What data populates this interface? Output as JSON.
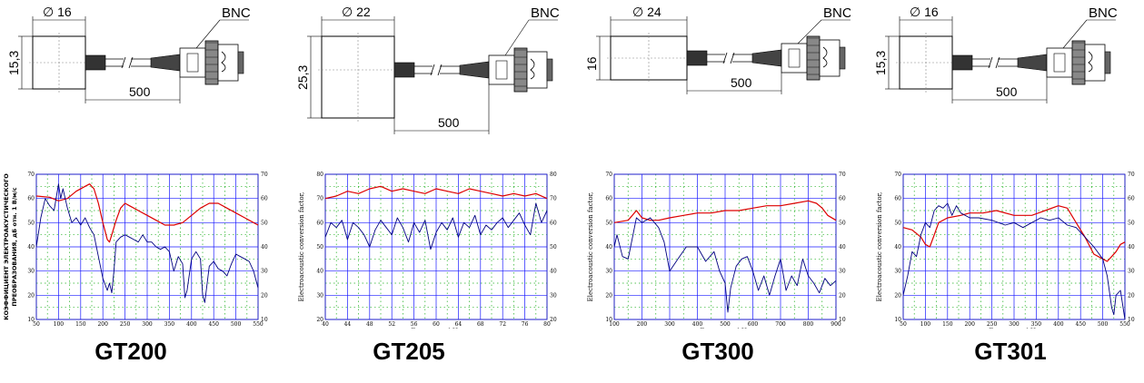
{
  "sensors": [
    {
      "model": "GT200",
      "drawing": {
        "diameter": "∅ 16",
        "height": "15,3",
        "cable_length": "500",
        "connector": "BNC",
        "body_w": 58,
        "body_h": 58
      },
      "chart_data": {
        "type": "line",
        "title": "",
        "xlabel": "ЧАСТОТА, кГц",
        "ylabel": "КОЭФФИЦИЕНТ ЭЛЕКТРОАКУСТИЧЕСКОГО ПРЕОБРАЗОВАНИЯ, дБ отн. 1 В/м/с",
        "xlim": [
          50,
          550
        ],
        "ylim": [
          10,
          70
        ],
        "xticks": [
          "50",
          "100",
          "150",
          "200",
          "250",
          "300",
          "350",
          "400",
          "450",
          "500",
          "550"
        ],
        "yticks": [
          "10",
          "20",
          "30",
          "40",
          "50",
          "60",
          "70"
        ],
        "grid": true,
        "series": [
          {
            "color": "#dd0000",
            "x": [
              50,
              80,
              100,
              120,
              140,
              160,
              170,
              180,
              190,
              200,
              210,
              215,
              220,
              230,
              240,
              250,
              260,
              280,
              300,
              320,
              340,
              360,
              380,
              400,
              420,
              440,
              460,
              480,
              500,
              520,
              540,
              550
            ],
            "y": [
              61,
              60.5,
              59,
              60,
              63,
              65,
              66,
              64,
              58,
              50,
              43,
              42,
              45,
              51,
              56,
              58,
              57,
              55,
              53,
              51,
              49,
              49,
              50,
              53,
              56,
              58,
              58,
              56,
              54,
              52,
              50,
              49
            ]
          },
          {
            "color": "#000080",
            "x": [
              50,
              60,
              70,
              80,
              90,
              100,
              105,
              110,
              120,
              130,
              140,
              150,
              160,
              170,
              180,
              190,
              200,
              210,
              215,
              220,
              225,
              230,
              240,
              250,
              260,
              270,
              280,
              290,
              300,
              310,
              320,
              330,
              340,
              350,
              360,
              370,
              380,
              385,
              390,
              400,
              410,
              420,
              425,
              430,
              440,
              450,
              460,
              470,
              480,
              490,
              500,
              510,
              520,
              530,
              540,
              550
            ],
            "y": [
              40,
              52,
              60,
              57,
              55,
              66,
              60,
              64,
              56,
              50,
              52,
              49,
              52,
              48,
              45,
              36,
              27,
              22,
              25,
              21,
              30,
              42,
              44,
              45,
              44,
              43,
              42,
              45,
              42,
              42,
              40,
              39,
              40,
              38,
              30,
              36,
              33,
              19,
              22,
              35,
              38,
              35,
              20,
              17,
              32,
              34,
              31,
              30,
              28,
              33,
              37,
              36,
              35,
              34,
              30,
              23
            ]
          }
        ]
      }
    },
    {
      "model": "GT205",
      "drawing": {
        "diameter": "∅ 22",
        "height": "25,3",
        "cable_length": "500",
        "connector": "BNC",
        "body_w": 80,
        "body_h": 90
      },
      "chart_data": {
        "type": "line",
        "title": "",
        "xlabel": "Frequency, kHz",
        "ylabel": "Electroacoustic conversion factor,",
        "xlim": [
          40,
          80
        ],
        "ylim": [
          20,
          80
        ],
        "xticks": [
          "40",
          "44",
          "48",
          "52",
          "56",
          "60",
          "64",
          "68",
          "72",
          "76",
          "80"
        ],
        "yticks": [
          "20",
          "30",
          "40",
          "50",
          "60",
          "70",
          "80"
        ],
        "grid": true,
        "series": [
          {
            "color": "#dd0000",
            "x": [
              40,
              42,
              44,
              46,
              48,
              50,
              52,
              54,
              56,
              58,
              60,
              62,
              64,
              66,
              68,
              70,
              72,
              74,
              76,
              78,
              80
            ],
            "y": [
              70,
              71,
              73,
              72,
              74,
              75,
              73,
              74,
              73,
              72,
              74,
              73,
              72,
              74,
              73,
              72,
              71,
              72,
              71,
              72,
              70
            ]
          },
          {
            "color": "#000080",
            "x": [
              40,
              41,
              42,
              43,
              44,
              45,
              46,
              47,
              48,
              49,
              50,
              51,
              52,
              53,
              54,
              55,
              56,
              57,
              58,
              59,
              60,
              61,
              62,
              63,
              64,
              65,
              66,
              67,
              68,
              69,
              70,
              71,
              72,
              73,
              74,
              75,
              76,
              77,
              78,
              79,
              80
            ],
            "y": [
              54,
              60,
              58,
              61,
              53,
              60,
              58,
              55,
              50,
              57,
              61,
              58,
              55,
              62,
              58,
              52,
              60,
              56,
              61,
              49,
              56,
              60,
              57,
              62,
              54,
              60,
              58,
              63,
              55,
              59,
              57,
              60,
              62,
              58,
              61,
              64,
              59,
              55,
              68,
              60,
              65
            ]
          }
        ]
      }
    },
    {
      "model": "GT300",
      "drawing": {
        "diameter": "∅ 24",
        "height": "16",
        "cable_length": "500",
        "connector": "BNC",
        "body_w": 84,
        "body_h": 48
      },
      "chart_data": {
        "type": "line",
        "title": "",
        "xlabel": "Frequency, kHz",
        "ylabel": "Electroacoustic conversion factor,",
        "xlim": [
          100,
          900
        ],
        "ylim": [
          10,
          70
        ],
        "xticks": [
          "100",
          "200",
          "300",
          "400",
          "500",
          "600",
          "700",
          "800",
          "900"
        ],
        "yticks": [
          "10",
          "20",
          "30",
          "40",
          "50",
          "60",
          "70"
        ],
        "grid": true,
        "series": [
          {
            "color": "#dd0000",
            "x": [
              100,
              150,
              180,
              200,
              230,
              260,
              300,
              350,
              400,
              450,
              500,
              550,
              600,
              650,
              700,
              750,
              800,
              830,
              850,
              870,
              900
            ],
            "y": [
              50,
              51,
              55,
              52,
              51,
              51,
              52,
              53,
              54,
              54,
              55,
              55,
              56,
              57,
              57,
              58,
              59,
              58,
              56,
              53,
              51
            ]
          },
          {
            "color": "#000080",
            "x": [
              100,
              110,
              130,
              150,
              180,
              200,
              230,
              260,
              280,
              300,
              330,
              360,
              400,
              430,
              460,
              480,
              500,
              510,
              520,
              540,
              560,
              580,
              600,
              620,
              640,
              660,
              680,
              700,
              720,
              740,
              760,
              780,
              800,
              820,
              840,
              860,
              880,
              900
            ],
            "y": [
              40,
              45,
              36,
              35,
              52,
              50,
              52,
              48,
              42,
              30,
              35,
              40,
              40,
              34,
              38,
              30,
              25,
              13,
              23,
              32,
              35,
              36,
              30,
              22,
              28,
              20,
              28,
              35,
              22,
              28,
              24,
              35,
              28,
              25,
              21,
              27,
              24,
              26
            ]
          }
        ]
      }
    },
    {
      "model": "GT301",
      "drawing": {
        "diameter": "∅ 16",
        "height": "15,3",
        "cable_length": "500",
        "connector": "BNC",
        "body_w": 58,
        "body_h": 58
      },
      "chart_data": {
        "type": "line",
        "title": "",
        "xlabel": "Frequency, kHz",
        "ylabel": "Electroacoustic conversion factor,",
        "xlim": [
          50,
          550
        ],
        "ylim": [
          10,
          70
        ],
        "xticks": [
          "50",
          "100",
          "150",
          "200",
          "250",
          "300",
          "350",
          "400",
          "450",
          "500",
          "550"
        ],
        "yticks": [
          "10",
          "20",
          "30",
          "40",
          "50",
          "60",
          "70"
        ],
        "grid": true,
        "series": [
          {
            "color": "#dd0000",
            "x": [
              50,
              70,
              90,
              100,
              110,
              120,
              130,
              150,
              180,
              200,
              230,
              260,
              300,
              340,
              370,
              400,
              420,
              440,
              460,
              480,
              500,
              510,
              520,
              530,
              540,
              550
            ],
            "y": [
              48,
              47,
              44,
              41,
              40,
              45,
              50,
              52,
              53,
              54,
              54,
              55,
              53,
              53,
              55,
              57,
              56,
              50,
              44,
              37,
              35,
              34,
              36,
              38,
              41,
              42
            ]
          },
          {
            "color": "#000080",
            "x": [
              50,
              60,
              70,
              80,
              90,
              100,
              110,
              120,
              130,
              140,
              150,
              160,
              170,
              180,
              200,
              220,
              250,
              280,
              300,
              320,
              340,
              360,
              380,
              400,
              420,
              440,
              460,
              480,
              500,
              510,
              520,
              525,
              530,
              540,
              550
            ],
            "y": [
              20,
              28,
              38,
              36,
              45,
              50,
              48,
              55,
              57,
              56,
              58,
              53,
              57,
              54,
              52,
              52,
              51,
              49,
              50,
              48,
              50,
              52,
              51,
              52,
              49,
              48,
              44,
              40,
              35,
              28,
              15,
              12,
              20,
              22,
              10
            ]
          }
        ]
      }
    }
  ]
}
